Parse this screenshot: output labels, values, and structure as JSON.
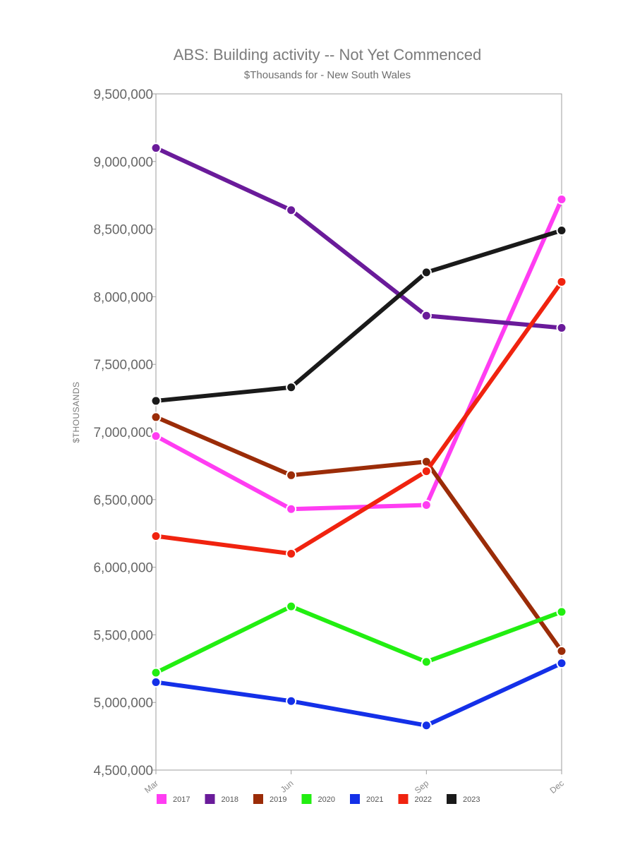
{
  "chart_data": {
    "type": "line",
    "title": "ABS: Building activity -- Not Yet Commenced",
    "subtitle": "$Thousands for - New South Wales",
    "ylabel": "$THOUSANDS",
    "xlabel": "",
    "categories": [
      "Mar",
      "Jun",
      "Sep",
      "Dec"
    ],
    "ylim": [
      4500000,
      9500000
    ],
    "yticks": [
      4500000,
      5000000,
      5500000,
      6000000,
      6500000,
      7000000,
      7500000,
      8000000,
      8500000,
      9000000,
      9500000
    ],
    "ytick_labels": [
      "4,500,000",
      "5,000,000",
      "5,500,000",
      "6,000,000",
      "6,500,000",
      "7,000,000",
      "7,500,000",
      "8,000,000",
      "8,500,000",
      "9,000,000",
      "9,500,000"
    ],
    "grid": false,
    "legend_position": "bottom",
    "series": [
      {
        "name": "2017",
        "color": "#ff3df2",
        "values": [
          6970000,
          6430000,
          6460000,
          8720000
        ]
      },
      {
        "name": "2018",
        "color": "#6a1b9a",
        "values": [
          9100000,
          8640000,
          7860000,
          7770000
        ]
      },
      {
        "name": "2019",
        "color": "#9b2c08",
        "values": [
          7110000,
          6680000,
          6780000,
          5380000
        ]
      },
      {
        "name": "2020",
        "color": "#22ee11",
        "values": [
          5220000,
          5710000,
          5300000,
          5670000
        ]
      },
      {
        "name": "2021",
        "color": "#1430e8",
        "values": [
          5150000,
          5010000,
          4830000,
          5290000
        ]
      },
      {
        "name": "2022",
        "color": "#f0230f",
        "values": [
          6230000,
          6100000,
          6710000,
          8110000
        ]
      },
      {
        "name": "2023",
        "color": "#1a1a1a",
        "values": [
          7230000,
          7330000,
          8180000,
          8490000
        ]
      }
    ]
  }
}
